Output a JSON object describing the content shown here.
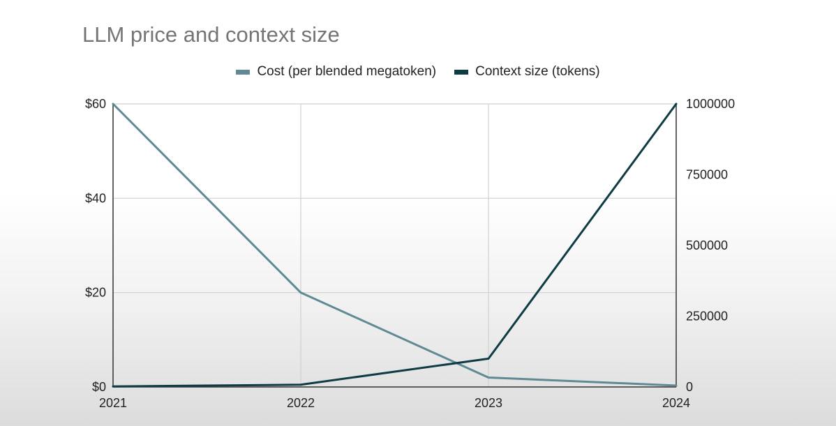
{
  "chart_data": {
    "type": "line",
    "title": "LLM price and context size",
    "categories": [
      "2021",
      "2022",
      "2023",
      "2024"
    ],
    "series": [
      {
        "name": "Cost (per blended megatoken)",
        "axis": "left",
        "color": "#5f8a94",
        "values": [
          60,
          20,
          2,
          0.3
        ]
      },
      {
        "name": "Context size (tokens)",
        "axis": "right",
        "color": "#0f3b45",
        "values": [
          2000,
          8000,
          100000,
          1000000
        ]
      }
    ],
    "y_left": {
      "range": [
        0,
        60
      ],
      "ticks": [
        0,
        20,
        40,
        60
      ],
      "tick_labels": [
        "$0",
        "$20",
        "$40",
        "$60"
      ]
    },
    "y_right": {
      "range": [
        0,
        1000000
      ],
      "ticks": [
        0,
        250000,
        500000,
        750000,
        1000000
      ],
      "tick_labels": [
        "0",
        "250000",
        "500000",
        "750000",
        "1000000"
      ]
    },
    "grid": true,
    "legend_position": "top-center"
  }
}
